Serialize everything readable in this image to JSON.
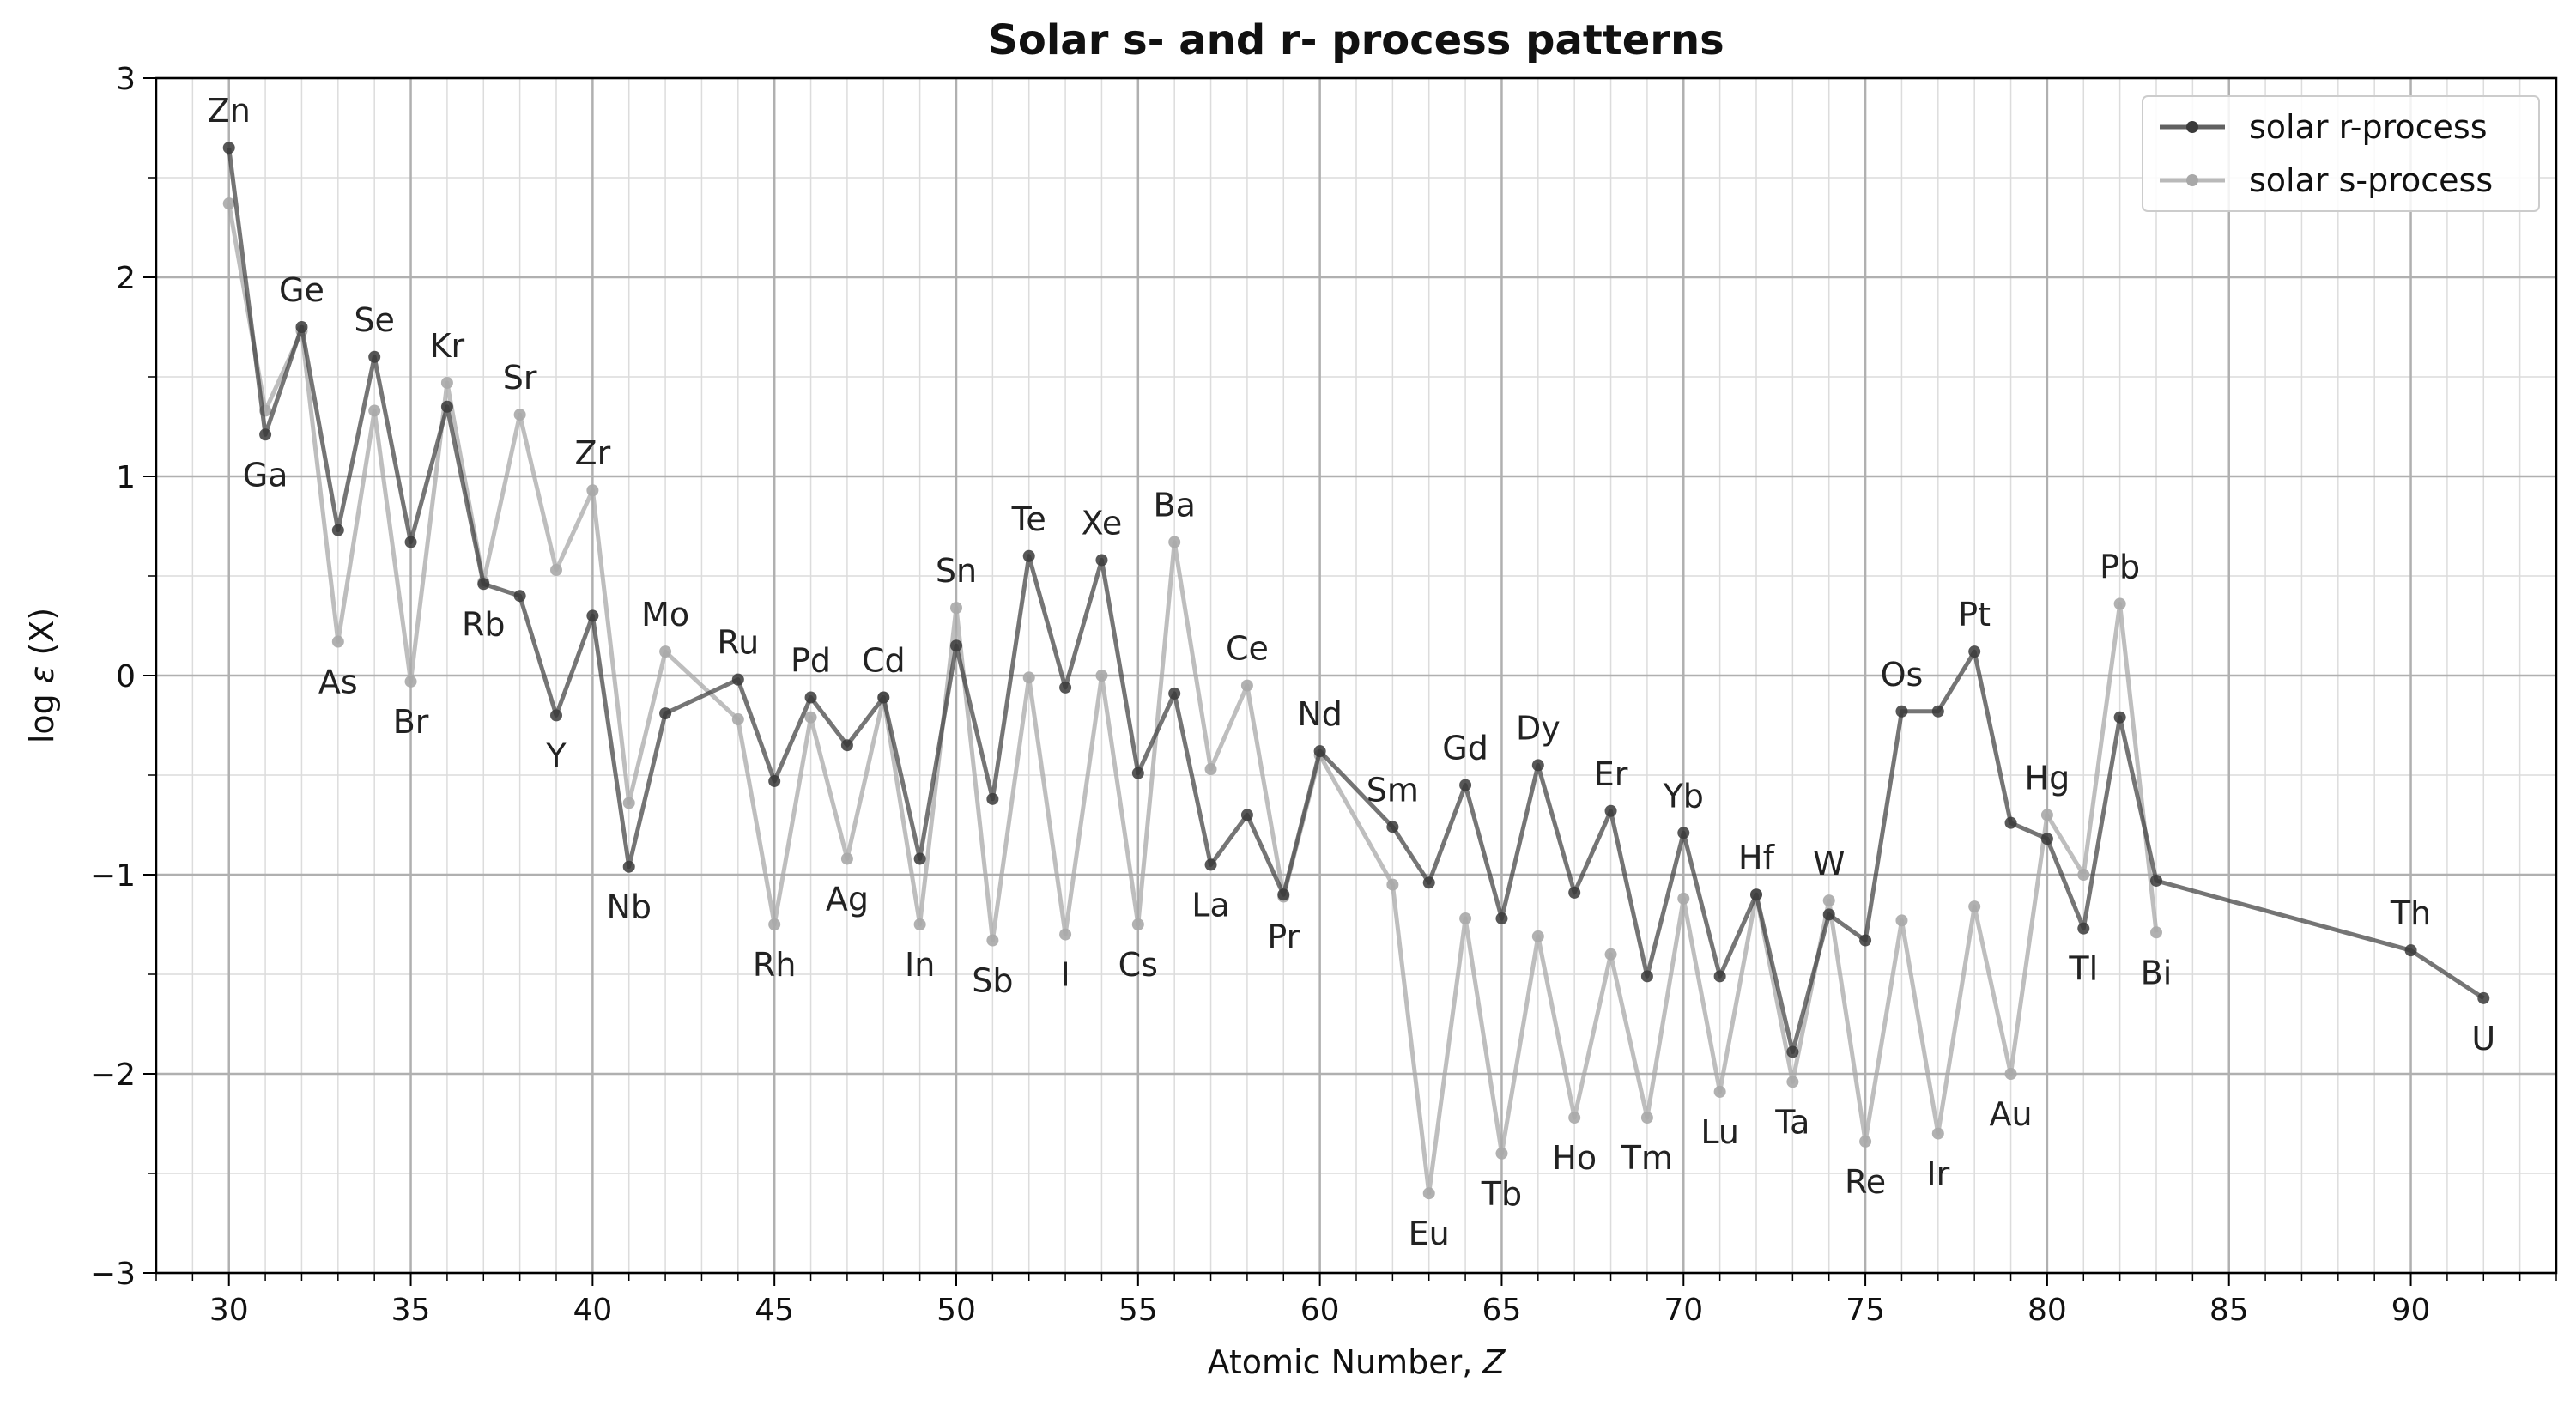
{
  "chart_data": {
    "type": "line",
    "title": "Solar s- and r- process patterns",
    "xlabel": "Atomic Number, ",
    "xlabel_var": "Z",
    "ylabel_prefix": "log ",
    "ylabel_var": "ε",
    "ylabel_suffix": " (X)",
    "xlim": [
      28,
      94
    ],
    "ylim": [
      -3,
      3
    ],
    "x_major_ticks": [
      30,
      35,
      40,
      45,
      50,
      55,
      60,
      65,
      70,
      75,
      80,
      85,
      90
    ],
    "x_tick_labels": [
      "30",
      "35",
      "40",
      "45",
      "50",
      "55",
      "60",
      "65",
      "70",
      "75",
      "80",
      "85",
      "90"
    ],
    "y_major_ticks": [
      -3,
      -2,
      -1,
      0,
      1,
      2,
      3
    ],
    "y_tick_labels": [
      "−3",
      "−2",
      "−1",
      "0",
      "1",
      "2",
      "3"
    ],
    "grid": true,
    "legend_position": "top-right",
    "series": [
      {
        "name": "solar r-process",
        "color": "#3a3a3a",
        "points": [
          [
            30,
            2.65
          ],
          [
            31,
            1.21
          ],
          [
            32,
            1.75
          ],
          [
            33,
            0.73
          ],
          [
            34,
            1.6
          ],
          [
            35,
            0.67
          ],
          [
            36,
            1.35
          ],
          [
            37,
            0.46
          ],
          [
            38,
            0.4
          ],
          [
            39,
            -0.2
          ],
          [
            40,
            0.3
          ],
          [
            41,
            -0.96
          ],
          [
            42,
            -0.19
          ],
          [
            44,
            -0.02
          ],
          [
            45,
            -0.53
          ],
          [
            46,
            -0.11
          ],
          [
            47,
            -0.35
          ],
          [
            48,
            -0.11
          ],
          [
            49,
            -0.92
          ],
          [
            50,
            0.15
          ],
          [
            51,
            -0.62
          ],
          [
            52,
            0.6
          ],
          [
            53,
            -0.06
          ],
          [
            54,
            0.58
          ],
          [
            55,
            -0.49
          ],
          [
            56,
            -0.09
          ],
          [
            57,
            -0.95
          ],
          [
            58,
            -0.7
          ],
          [
            59,
            -1.1
          ],
          [
            60,
            -0.38
          ],
          [
            62,
            -0.76
          ],
          [
            63,
            -1.04
          ],
          [
            64,
            -0.55
          ],
          [
            65,
            -1.22
          ],
          [
            66,
            -0.45
          ],
          [
            67,
            -1.09
          ],
          [
            68,
            -0.68
          ],
          [
            69,
            -1.51
          ],
          [
            70,
            -0.79
          ],
          [
            71,
            -1.51
          ],
          [
            72,
            -1.1
          ],
          [
            73,
            -1.89
          ],
          [
            74,
            -1.2
          ],
          [
            75,
            -1.33
          ],
          [
            76,
            -0.18
          ],
          [
            77,
            -0.18
          ],
          [
            78,
            0.12
          ],
          [
            79,
            -0.74
          ],
          [
            80,
            -0.82
          ],
          [
            81,
            -1.27
          ],
          [
            82,
            -0.21
          ],
          [
            83,
            -1.03
          ],
          [
            90,
            -1.38
          ],
          [
            92,
            -1.62
          ]
        ]
      },
      {
        "name": "solar s-process",
        "color": "#a8a8a8",
        "points": [
          [
            30,
            2.37
          ],
          [
            31,
            1.33
          ],
          [
            32,
            1.73
          ],
          [
            33,
            0.17
          ],
          [
            34,
            1.33
          ],
          [
            35,
            -0.03
          ],
          [
            36,
            1.47
          ],
          [
            37,
            0.47
          ],
          [
            38,
            1.31
          ],
          [
            39,
            0.53
          ],
          [
            40,
            0.93
          ],
          [
            41,
            -0.64
          ],
          [
            42,
            0.12
          ],
          [
            44,
            -0.22
          ],
          [
            45,
            -1.25
          ],
          [
            46,
            -0.21
          ],
          [
            47,
            -0.92
          ],
          [
            48,
            -0.11
          ],
          [
            49,
            -1.25
          ],
          [
            50,
            0.34
          ],
          [
            51,
            -1.33
          ],
          [
            52,
            -0.01
          ],
          [
            53,
            -1.3
          ],
          [
            54,
            0.0
          ],
          [
            55,
            -1.25
          ],
          [
            56,
            0.67
          ],
          [
            57,
            -0.47
          ],
          [
            58,
            -0.05
          ],
          [
            59,
            -1.11
          ],
          [
            60,
            -0.4
          ],
          [
            62,
            -1.05
          ],
          [
            63,
            -2.6
          ],
          [
            64,
            -1.22
          ],
          [
            65,
            -2.4
          ],
          [
            66,
            -1.31
          ],
          [
            67,
            -2.22
          ],
          [
            68,
            -1.4
          ],
          [
            69,
            -2.22
          ],
          [
            70,
            -1.12
          ],
          [
            71,
            -2.09
          ],
          [
            72,
            -1.1
          ],
          [
            73,
            -2.04
          ],
          [
            74,
            -1.13
          ],
          [
            75,
            -2.34
          ],
          [
            76,
            -1.23
          ],
          [
            77,
            -2.3
          ],
          [
            78,
            -1.16
          ],
          [
            79,
            -2.0
          ],
          [
            80,
            -0.7
          ],
          [
            81,
            -1.0
          ],
          [
            82,
            0.36
          ],
          [
            83,
            -1.29
          ]
        ]
      }
    ],
    "annotations": [
      {
        "text": "Zn",
        "z": 30,
        "pos": "above"
      },
      {
        "text": "Ga",
        "z": 31,
        "pos": "below"
      },
      {
        "text": "Ge",
        "z": 32,
        "pos": "above"
      },
      {
        "text": "As",
        "z": 33,
        "pos": "below"
      },
      {
        "text": "Se",
        "z": 34,
        "pos": "above"
      },
      {
        "text": "Br",
        "z": 35,
        "pos": "below"
      },
      {
        "text": "Kr",
        "z": 36,
        "pos": "above"
      },
      {
        "text": "Rb",
        "z": 37,
        "pos": "below"
      },
      {
        "text": "Sr",
        "z": 38,
        "pos": "above"
      },
      {
        "text": "Y",
        "z": 39,
        "pos": "below"
      },
      {
        "text": "Zr",
        "z": 40,
        "pos": "above"
      },
      {
        "text": "Nb",
        "z": 41,
        "pos": "below"
      },
      {
        "text": "Mo",
        "z": 42,
        "pos": "above"
      },
      {
        "text": "Ru",
        "z": 44,
        "pos": "above"
      },
      {
        "text": "Rh",
        "z": 45,
        "pos": "below"
      },
      {
        "text": "Pd",
        "z": 46,
        "pos": "above"
      },
      {
        "text": "Ag",
        "z": 47,
        "pos": "below"
      },
      {
        "text": "Cd",
        "z": 48,
        "pos": "above"
      },
      {
        "text": "In",
        "z": 49,
        "pos": "below"
      },
      {
        "text": "Sn",
        "z": 50,
        "pos": "above"
      },
      {
        "text": "Sb",
        "z": 51,
        "pos": "below"
      },
      {
        "text": "Te",
        "z": 52,
        "pos": "above"
      },
      {
        "text": "I",
        "z": 53,
        "pos": "below"
      },
      {
        "text": "Xe",
        "z": 54,
        "pos": "above"
      },
      {
        "text": "Cs",
        "z": 55,
        "pos": "below"
      },
      {
        "text": "Ba",
        "z": 56,
        "pos": "above"
      },
      {
        "text": "La",
        "z": 57,
        "pos": "below"
      },
      {
        "text": "Ce",
        "z": 58,
        "pos": "above"
      },
      {
        "text": "Pr",
        "z": 59,
        "pos": "below"
      },
      {
        "text": "Nd",
        "z": 60,
        "pos": "above"
      },
      {
        "text": "Sm",
        "z": 62,
        "pos": "above"
      },
      {
        "text": "Eu",
        "z": 63,
        "pos": "below"
      },
      {
        "text": "Gd",
        "z": 64,
        "pos": "above"
      },
      {
        "text": "Tb",
        "z": 65,
        "pos": "below"
      },
      {
        "text": "Dy",
        "z": 66,
        "pos": "above"
      },
      {
        "text": "Ho",
        "z": 67,
        "pos": "below"
      },
      {
        "text": "Er",
        "z": 68,
        "pos": "above"
      },
      {
        "text": "Tm",
        "z": 69,
        "pos": "below"
      },
      {
        "text": "Yb",
        "z": 70,
        "pos": "above"
      },
      {
        "text": "Lu",
        "z": 71,
        "pos": "below"
      },
      {
        "text": "Hf",
        "z": 72,
        "pos": "above"
      },
      {
        "text": "Ta",
        "z": 73,
        "pos": "below"
      },
      {
        "text": "W",
        "z": 74,
        "pos": "above"
      },
      {
        "text": "Re",
        "z": 75,
        "pos": "below"
      },
      {
        "text": "Os",
        "z": 76,
        "pos": "above"
      },
      {
        "text": "Ir",
        "z": 77,
        "pos": "below"
      },
      {
        "text": "Pt",
        "z": 78,
        "pos": "above"
      },
      {
        "text": "Au",
        "z": 79,
        "pos": "below"
      },
      {
        "text": "Hg",
        "z": 80,
        "pos": "above"
      },
      {
        "text": "Tl",
        "z": 81,
        "pos": "below"
      },
      {
        "text": "Pb",
        "z": 82,
        "pos": "above"
      },
      {
        "text": "Bi",
        "z": 83,
        "pos": "below"
      },
      {
        "text": "Th",
        "z": 90,
        "pos": "above"
      },
      {
        "text": "U",
        "z": 92,
        "pos": "below"
      }
    ]
  }
}
